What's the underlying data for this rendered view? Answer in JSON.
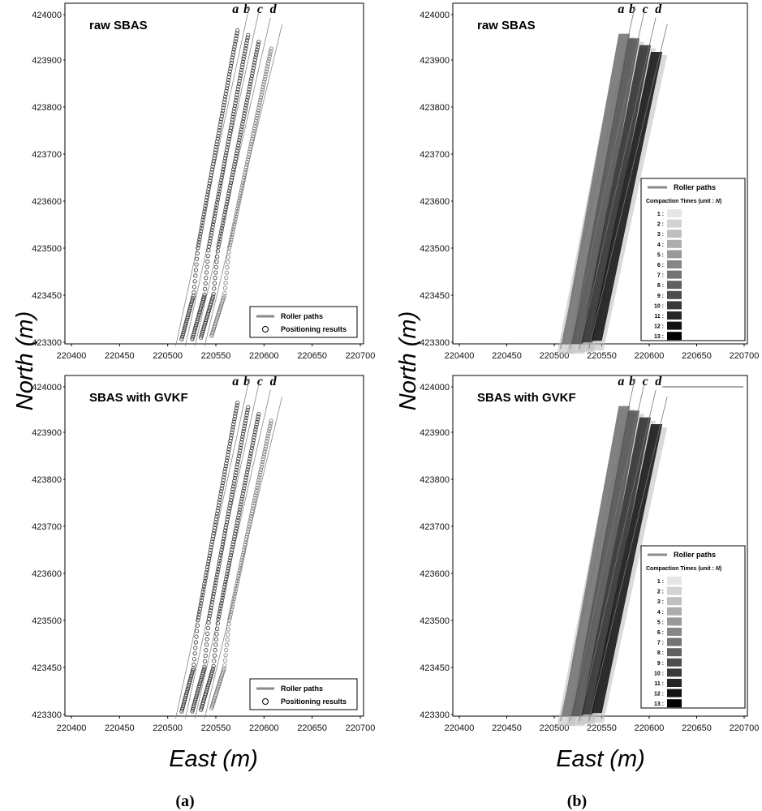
{
  "chart_data": [
    {
      "type": "scatter",
      "panel": "a-top",
      "title": "raw SBAS",
      "path_labels": [
        "a",
        "b",
        "c",
        "d"
      ],
      "xlim": [
        220400,
        220700
      ],
      "ylim": [
        423300,
        424000
      ],
      "x_ticks": [
        "220400",
        "220450",
        "220500",
        "220550",
        "220600",
        "220650",
        "220700"
      ],
      "y_ticks": [
        "424000",
        "423900",
        "423800",
        "423700",
        "423600",
        "423500",
        "423450",
        "423300"
      ],
      "legend": {
        "placement": "bottom-right",
        "line": "Roller paths",
        "marker": "Positioning results"
      },
      "series": [
        {
          "name": "a",
          "start": [
            220515,
            423310
          ],
          "end": [
            220573,
            423965
          ]
        },
        {
          "name": "b",
          "start": [
            220525,
            423310
          ],
          "end": [
            220583,
            423955
          ]
        },
        {
          "name": "c",
          "start": [
            220535,
            423315
          ],
          "end": [
            220595,
            423940
          ]
        },
        {
          "name": "d",
          "start": [
            220545,
            423320
          ],
          "end": [
            220607,
            423925
          ]
        }
      ]
    },
    {
      "type": "heatmap",
      "panel": "b-top",
      "title": "raw SBAS",
      "path_labels": [
        "a",
        "b",
        "c",
        "d"
      ],
      "xlim": [
        220400,
        220700
      ],
      "ylim": [
        423300,
        424000
      ],
      "x_ticks": [
        "220400",
        "220450",
        "220500",
        "220550",
        "220600",
        "220650",
        "220700"
      ],
      "y_ticks": [
        "424000",
        "423900",
        "423800",
        "423700",
        "423600",
        "423500",
        "423450",
        "423300"
      ],
      "legend": {
        "placement": "right",
        "line": "Roller paths",
        "scale_title": "Compaction Times (unit : ",
        "scale_unit": "N",
        "scale_close": ")",
        "levels": [
          "1 :",
          "2 :",
          "3 :",
          "4 :",
          "5 :",
          "6 :",
          "7 :",
          "8 :",
          "9 :",
          "10 :",
          "11 :",
          "12 :",
          "13 :"
        ]
      }
    },
    {
      "type": "scatter",
      "panel": "a-bottom",
      "title": "SBAS with GVKF",
      "path_labels": [
        "a",
        "b",
        "c",
        "d"
      ],
      "xlim": [
        220400,
        220700
      ],
      "ylim": [
        423300,
        424000
      ],
      "x_ticks": [
        "220400",
        "220450",
        "220500",
        "220550",
        "220600",
        "220650",
        "220700"
      ],
      "y_ticks": [
        "424000",
        "423900",
        "423800",
        "423700",
        "423600",
        "423500",
        "423450",
        "423300"
      ],
      "legend": {
        "placement": "bottom-right",
        "line": "Roller paths",
        "marker": "Positioning results"
      }
    },
    {
      "type": "heatmap",
      "panel": "b-bottom",
      "title": "SBAS with GVKF",
      "path_labels": [
        "a",
        "b",
        "c",
        "d"
      ],
      "xlim": [
        220400,
        220700
      ],
      "ylim": [
        423300,
        424000
      ],
      "x_ticks": [
        "220400",
        "220450",
        "220500",
        "220550",
        "220600",
        "220650",
        "220700"
      ],
      "y_ticks": [
        "424000",
        "423900",
        "423800",
        "423700",
        "423600",
        "423500",
        "423450",
        "423300"
      ],
      "legend": {
        "placement": "right",
        "line": "Roller paths",
        "scale_title": "Compaction Times (unit : ",
        "scale_unit": "N",
        "scale_close": ")",
        "levels": [
          "1 :",
          "2 :",
          "3 :",
          "4 :",
          "5 :",
          "6 :",
          "7 :",
          "8 :",
          "9 :",
          "10 :",
          "11 :",
          "12 :",
          "13 :"
        ]
      }
    }
  ],
  "axis_labels": {
    "x": "East (m)",
    "y": "North (m)"
  },
  "subfigure_labels": {
    "a": "(a)",
    "b": "(b)"
  },
  "colors": {
    "roller_path": "#8a8a8a",
    "marker": "#333333",
    "shade_light": "#e6e6e6",
    "shade_dark": "#000000"
  }
}
